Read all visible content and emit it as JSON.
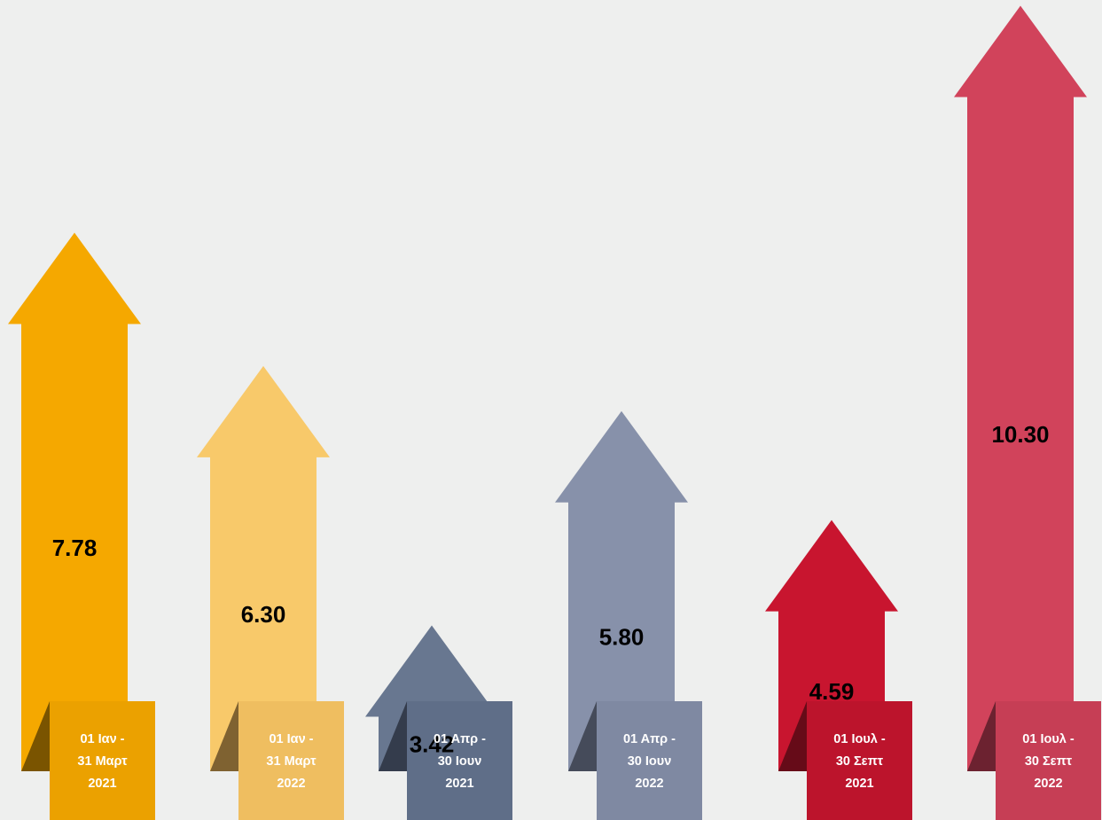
{
  "chart_data": {
    "type": "bar",
    "style": "upward arrows with folded label tags",
    "title": "",
    "xlabel": "",
    "ylabel": "",
    "ylim": [
      0,
      11.5
    ],
    "grid": false,
    "legend": "none",
    "categories": [
      [
        "01 Ιαν -",
        "31 Μαρτ",
        "2021"
      ],
      [
        "01 Ιαν -",
        "31 Μαρτ",
        "2022"
      ],
      [
        "01 Απρ -",
        "30 Ιουν",
        "2021"
      ],
      [
        "01 Απρ -",
        "30 Ιουν",
        "2022"
      ],
      [
        "01 Ιουλ -",
        "30 Σεπτ",
        "2021"
      ],
      [
        "01 Ιουλ -",
        "30 Σεπτ",
        "2022"
      ]
    ],
    "values": [
      7.78,
      6.3,
      3.42,
      5.8,
      4.59,
      10.3
    ],
    "value_labels": [
      "7.78",
      "6.30",
      "3.42",
      "5.80",
      "4.59",
      "10.30"
    ],
    "colors": [
      {
        "arrow": "#f5a800",
        "tag": "#eba100",
        "fold": "#7a5400"
      },
      {
        "arrow": "#f8c96a",
        "tag": "#efbe60",
        "fold": "#7f6231"
      },
      {
        "arrow": "#687790",
        "tag": "#5f6e88",
        "fold": "#343c4c"
      },
      {
        "arrow": "#8791aa",
        "tag": "#7f89a2",
        "fold": "#454b5a"
      },
      {
        "arrow": "#c8152f",
        "tag": "#bc142c",
        "fold": "#660b18"
      },
      {
        "arrow": "#d1435b",
        "tag": "#c63e55",
        "fold": "#6c2230"
      }
    ]
  }
}
